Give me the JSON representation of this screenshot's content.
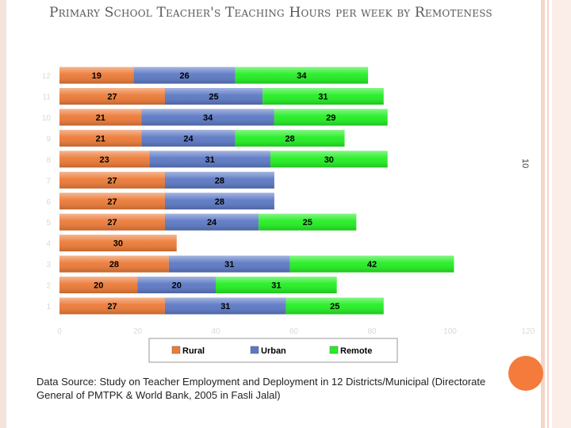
{
  "page": {
    "title": "Primary School Teacher's Teaching Hours per week by Remoteness",
    "page_number": "10",
    "source": "Data Source: Study on Teacher Employment and Deployment in 12 Districts/Municipal (Directorate General of PMTPK & World Bank, 2005 in Fasli Jalal)",
    "accent_color": "#f47b3b"
  },
  "chart_data": {
    "type": "bar",
    "orientation": "horizontal",
    "stacked": true,
    "categories": [
      "1",
      "2",
      "3",
      "4",
      "5",
      "6",
      "7",
      "8",
      "9",
      "10",
      "11",
      "12"
    ],
    "series": [
      {
        "name": "Rural",
        "color": "#ec7a36",
        "values": [
          27,
          20,
          28,
          30,
          27,
          27,
          27,
          23,
          21,
          21,
          27,
          19
        ]
      },
      {
        "name": "Urban",
        "color": "#5b78c4",
        "values": [
          31,
          20,
          31,
          null,
          24,
          28,
          28,
          31,
          24,
          34,
          25,
          26
        ]
      },
      {
        "name": "Remote",
        "color": "#22ee22",
        "values": [
          25,
          31,
          42,
          null,
          25,
          null,
          null,
          30,
          28,
          29,
          31,
          34
        ]
      }
    ],
    "xlim": [
      0,
      120
    ],
    "xticks": [
      "0",
      "20",
      "40",
      "60",
      "80",
      "100",
      "120"
    ],
    "legend_position": "bottom",
    "grid": false
  }
}
